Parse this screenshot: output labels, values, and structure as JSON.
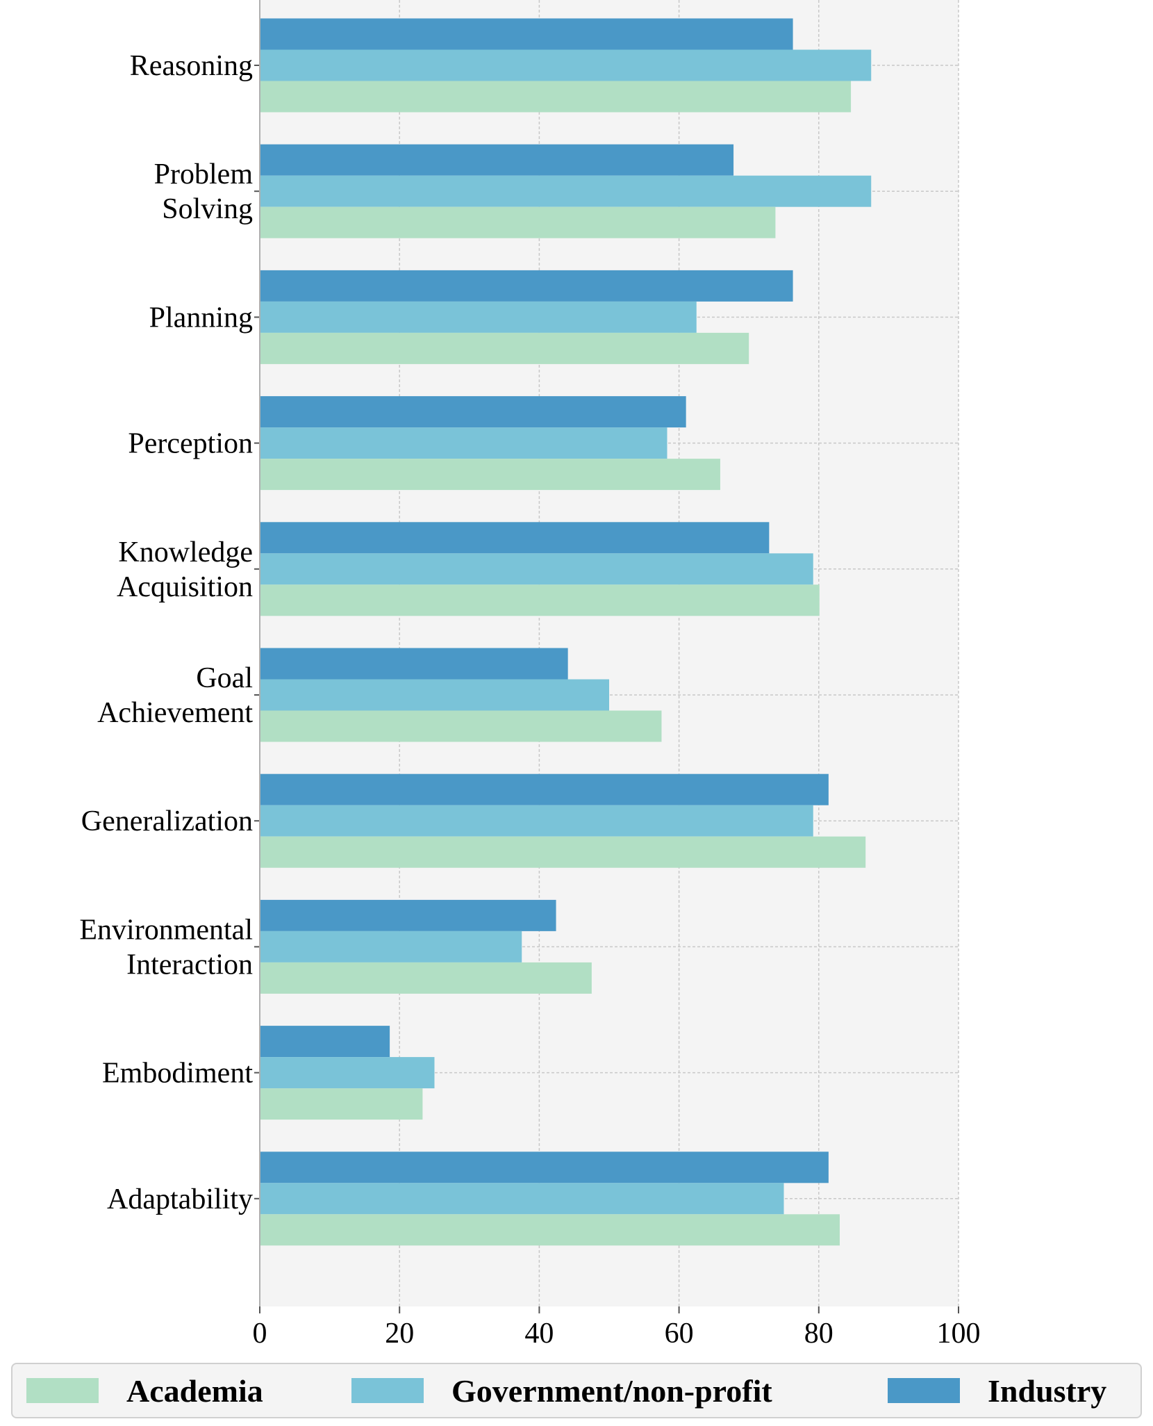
{
  "chart_data": {
    "type": "bar",
    "orientation": "horizontal",
    "categories": [
      [
        "Reasoning"
      ],
      [
        "Problem",
        "Solving"
      ],
      [
        "Planning"
      ],
      [
        "Perception"
      ],
      [
        "Knowledge",
        "Acquisition"
      ],
      [
        "Goal",
        "Achievement"
      ],
      [
        "Generalization"
      ],
      [
        "Environmental",
        "Interaction"
      ],
      [
        "Embodiment"
      ],
      [
        "Adaptability"
      ]
    ],
    "series": [
      {
        "name": "Industry",
        "color": "#4a98c7",
        "values": [
          76.3,
          67.8,
          76.3,
          61.0,
          72.9,
          44.1,
          81.4,
          42.4,
          18.6,
          81.4
        ]
      },
      {
        "name": "Government/non-profit",
        "color": "#7ac3d8",
        "values": [
          87.5,
          87.5,
          62.5,
          58.3,
          79.2,
          50.0,
          79.2,
          37.5,
          25.0,
          75.0
        ]
      },
      {
        "name": "Academia",
        "color": "#b1dfc4",
        "values": [
          84.6,
          73.8,
          70.0,
          65.9,
          80.1,
          57.5,
          86.7,
          47.5,
          23.3,
          83.0
        ]
      }
    ],
    "xlim": [
      0,
      100
    ],
    "xticks": [
      "0",
      "20",
      "40",
      "60",
      "80",
      "100"
    ],
    "grid": true,
    "legend": [
      {
        "label": "Academia",
        "color": "#b1dfc4"
      },
      {
        "label": "Government/non-profit",
        "color": "#7ac3d8"
      },
      {
        "label": "Industry",
        "color": "#4a98c7"
      }
    ],
    "legend_position": "bottom"
  }
}
